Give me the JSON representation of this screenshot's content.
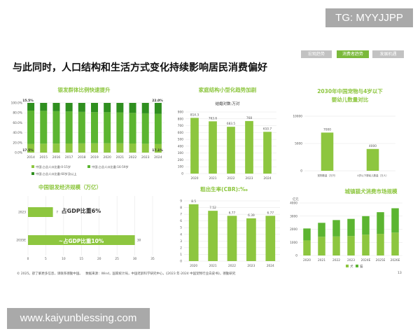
{
  "watermark_top": "TG: MYYJJPP",
  "watermark_bottom": "www.kaiyunblessing.com",
  "slide": {
    "title": "与此同时，人口结构和生活方式变化持续影响居民消费偏好",
    "tabs": [
      {
        "label": "宏观趋势",
        "active": false
      },
      {
        "label": "消费者趋势",
        "active": true
      },
      {
        "label": "发展机遇",
        "active": false
      }
    ],
    "footer_left": "© 2025。欲了解更多信息，请联系德勤中国。",
    "footer_source": "数据来源：Wind，国家统计局，中国老龄科学研究中心，《2023 年-2024 中国宠物行业白皮书》，德勤研究",
    "page_number": "13"
  },
  "colors": {
    "light": "#8dc63f",
    "mid": "#5cb531",
    "dark": "#2f8f1f",
    "title": "#8dc63f"
  },
  "chart_data": [
    {
      "type": "bar",
      "stacked": true,
      "title": "银发群体比例快速提升",
      "categories": [
        "2014",
        "2015",
        "2016",
        "2017",
        "2018",
        "2019",
        "2020",
        "2021",
        "2022",
        "2023",
        "2024"
      ],
      "yticks": [
        "0.0%",
        "20.0%",
        "40.0%",
        "60.0%",
        "80.0%",
        "100.0%"
      ],
      "ylim": [
        0,
        100
      ],
      "series": [
        {
          "name": "中国:占总人口比重:0-15岁",
          "values": [
            17.5,
            17.9,
            18.1,
            18.3,
            18.5,
            18.6,
            18.8,
            18.6,
            18.3,
            17.8,
            17.1
          ]
        },
        {
          "name": "中国:占总人口比重:16-59岁",
          "values": [
            67.0,
            66.1,
            65.2,
            64.4,
            63.4,
            62.7,
            62.4,
            62.3,
            61.6,
            61.2,
            60.9
          ]
        },
        {
          "name": "中国:占总人口比重:60岁及以上",
          "values": [
            15.5,
            16.0,
            16.7,
            17.3,
            18.1,
            18.7,
            18.8,
            19.1,
            20.1,
            21.0,
            22.0
          ]
        }
      ],
      "annotations": [
        "15.5%",
        "22.0%",
        "17.5%",
        "17.1%"
      ]
    },
    {
      "type": "bar",
      "title": "家庭结构小型化趋势加剧",
      "subtitle": "结婚对数:万对",
      "categories": [
        "2020",
        "2021",
        "2022",
        "2023",
        "2024"
      ],
      "values": [
        814.3,
        763.6,
        683.5,
        768,
        610.7
      ],
      "data_labels": [
        "814.3",
        "763.6",
        "683.5",
        "768",
        "610.7"
      ],
      "yticks": [
        "0",
        "100",
        "200",
        "300",
        "400",
        "500",
        "600",
        "700",
        "800",
        "900"
      ],
      "ylim": [
        0,
        900
      ]
    },
    {
      "type": "bar",
      "title": "2030年中国宠物与4岁以下婴幼儿数量对比",
      "categories": [
        "宠物数量（万只）",
        "4岁以下婴幼儿数量（万人）"
      ],
      "values": [
        7000,
        4000
      ],
      "data_labels": [
        "7000",
        "4000"
      ],
      "yticks": [
        "0",
        "5000",
        "10000"
      ],
      "ylim": [
        0,
        10000
      ]
    },
    {
      "type": "bar",
      "orientation": "horizontal",
      "title": "中国银发经济规模（万亿）",
      "categories": [
        "2023",
        "2035E"
      ],
      "values": [
        7,
        30
      ],
      "data_labels": [
        "7",
        "30"
      ],
      "annotations": [
        "占GDP比重6%",
        "~占GDP比重10%"
      ],
      "xticks": [
        "0",
        "5",
        "10",
        "15",
        "20",
        "25",
        "30",
        "35"
      ],
      "xlim": [
        0,
        35
      ]
    },
    {
      "type": "bar",
      "title": "粗出生率(CBR):‰",
      "categories": [
        "2020",
        "2021",
        "2022",
        "2023",
        "2024"
      ],
      "values": [
        8.5,
        7.52,
        6.77,
        6.39,
        6.77
      ],
      "data_labels": [
        "8.5",
        "7.52",
        "6.77",
        "6.39",
        "6.77"
      ],
      "yticks": [
        "0",
        "1",
        "2",
        "3",
        "4",
        "5",
        "6",
        "7",
        "8",
        "9"
      ],
      "ylim": [
        0,
        9
      ]
    },
    {
      "type": "bar",
      "stacked": true,
      "title": "城镇猫犬消费市场规模",
      "ylabel": "亿元",
      "categories": [
        "2020",
        "2021",
        "2022",
        "2023",
        "2024E",
        "2025E",
        "2026E"
      ],
      "yticks": [
        "0",
        "1000",
        "2000",
        "3000",
        "4000"
      ],
      "ylim": [
        0,
        4000
      ],
      "series": [
        {
          "name": "犬",
          "values": [
            1150,
            1430,
            1450,
            1480,
            1590,
            1650,
            1750
          ]
        },
        {
          "name": "猫",
          "values": [
            910,
            1060,
            1250,
            1310,
            1410,
            1650,
            1850
          ]
        }
      ]
    }
  ]
}
